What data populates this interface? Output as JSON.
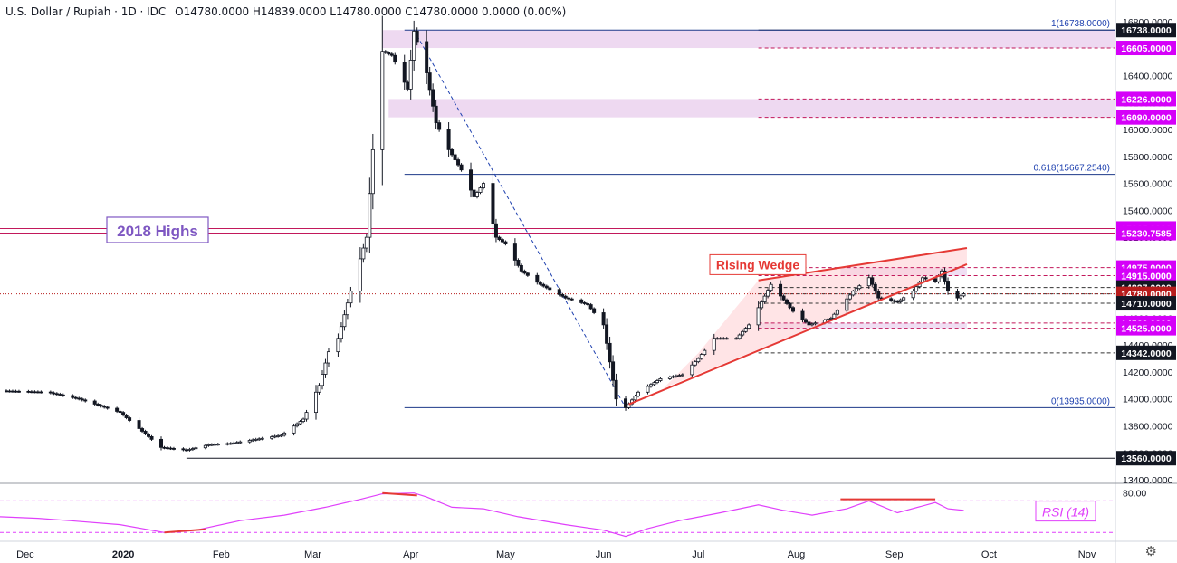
{
  "header": {
    "symbol": "U.S. Dollar / Rupiah · 1D · IDC",
    "ohlc": "O14780.0000 H14839.0000 L14780.0000 C14780.0000 0.0000 (0.00%)"
  },
  "chart_data": [
    {
      "type": "candlestick",
      "title": "U.S. Dollar / Rupiah · 1D · IDC",
      "y_range": [
        13380,
        16800
      ],
      "x_range": [
        "2019-11-23",
        "2020-11-10"
      ],
      "price_axis_ticks": [
        13400,
        13600,
        13800,
        14000,
        14200,
        14400,
        14600,
        14800,
        15000,
        15200,
        15400,
        15600,
        15800,
        16000,
        16200,
        16400,
        16600,
        16800
      ],
      "price_tick_labels": [
        "13400.0000",
        "13600.0000",
        "13800.0000",
        "14000.0000",
        "14200.0000",
        "14400.0000",
        "14600.0000",
        "14800.0000",
        "15000.0000",
        "15200.0000",
        "15400.0000",
        "15600.0000",
        "15800.0000",
        "16000.0000",
        "16200.0000",
        "16400.0000",
        "16600.0000",
        "16800.0000"
      ],
      "time_axis_labels": [
        {
          "date": "2019-12-01",
          "label": "Dec"
        },
        {
          "date": "2020-01-01",
          "label": "2020"
        },
        {
          "date": "2020-02-01",
          "label": "Feb"
        },
        {
          "date": "2020-03-01",
          "label": "Mar"
        },
        {
          "date": "2020-04-01",
          "label": "Apr"
        },
        {
          "date": "2020-05-01",
          "label": "May"
        },
        {
          "date": "2020-06-01",
          "label": "Jun"
        },
        {
          "date": "2020-07-01",
          "label": "Jul"
        },
        {
          "date": "2020-08-01",
          "label": "Aug"
        },
        {
          "date": "2020-09-01",
          "label": "Sep"
        },
        {
          "date": "2020-10-01",
          "label": "Oct"
        },
        {
          "date": "2020-11-01",
          "label": "Nov"
        }
      ],
      "close_path": [
        [
          "2019-11-23",
          14060
        ],
        [
          "2019-12-08",
          14050
        ],
        [
          "2019-12-18",
          14000
        ],
        [
          "2019-12-31",
          13900
        ],
        [
          "2020-01-08",
          13740
        ],
        [
          "2020-01-13",
          13640
        ],
        [
          "2020-01-21",
          13620
        ],
        [
          "2020-01-28",
          13660
        ],
        [
          "2020-02-04",
          13670
        ],
        [
          "2020-02-12",
          13700
        ],
        [
          "2020-02-20",
          13730
        ],
        [
          "2020-02-27",
          13850
        ],
        [
          "2020-03-03",
          14100
        ],
        [
          "2020-03-06",
          14350
        ],
        [
          "2020-03-09",
          14450
        ],
        [
          "2020-03-13",
          14800
        ],
        [
          "2020-03-18",
          15200
        ],
        [
          "2020-03-20",
          15850
        ],
        [
          "2020-03-23",
          16580
        ],
        [
          "2020-03-26",
          16550
        ],
        [
          "2020-03-31",
          16300
        ],
        [
          "2020-04-02",
          16730
        ],
        [
          "2020-04-06",
          16420
        ],
        [
          "2020-04-09",
          16050
        ],
        [
          "2020-04-13",
          15850
        ],
        [
          "2020-04-17",
          15700
        ],
        [
          "2020-04-21",
          15500
        ],
        [
          "2020-04-24",
          15600
        ],
        [
          "2020-04-28",
          15200
        ],
        [
          "2020-05-01",
          15150
        ],
        [
          "2020-05-06",
          14950
        ],
        [
          "2020-05-12",
          14850
        ],
        [
          "2020-05-20",
          14750
        ],
        [
          "2020-05-27",
          14700
        ],
        [
          "2020-06-01",
          14550
        ],
        [
          "2020-06-05",
          14000
        ],
        [
          "2020-06-08",
          13935
        ],
        [
          "2020-06-12",
          14050
        ],
        [
          "2020-06-19",
          14150
        ],
        [
          "2020-06-26",
          14180
        ],
        [
          "2020-07-01",
          14300
        ],
        [
          "2020-07-06",
          14450
        ],
        [
          "2020-07-13",
          14450
        ],
        [
          "2020-07-17",
          14550
        ],
        [
          "2020-07-21",
          14720
        ],
        [
          "2020-07-24",
          14850
        ],
        [
          "2020-07-31",
          14650
        ],
        [
          "2020-08-05",
          14550
        ],
        [
          "2020-08-12",
          14600
        ],
        [
          "2020-08-19",
          14800
        ],
        [
          "2020-08-24",
          14900
        ],
        [
          "2020-08-27",
          14750
        ],
        [
          "2020-09-02",
          14720
        ],
        [
          "2020-09-07",
          14800
        ],
        [
          "2020-09-10",
          14900
        ],
        [
          "2020-09-14",
          14870
        ],
        [
          "2020-09-16",
          14950
        ],
        [
          "2020-09-18",
          14800
        ],
        [
          "2020-09-21",
          14750
        ],
        [
          "2020-09-23",
          14780
        ]
      ],
      "horizontal_levels": [
        {
          "price": 16738,
          "label": "16738.0000",
          "color": "#131722"
        },
        {
          "price": 16605,
          "label": "16605.0000",
          "color": "#7b00d4"
        },
        {
          "price": 16226,
          "label": "16226.0000",
          "color": "#7b00d4"
        },
        {
          "price": 16090,
          "label": "16090.0000",
          "color": "#7b00d4"
        },
        {
          "price": 15265,
          "label": "15265.0000",
          "color": "#7b00d4"
        },
        {
          "price": 15230.7585,
          "label": "15230.7585",
          "color": "#7b00d4"
        },
        {
          "price": 14975,
          "label": "14975.0000",
          "color": "#7b00d4"
        },
        {
          "price": 14915,
          "label": "14915.0000",
          "color": "#7b00d4"
        },
        {
          "price": 14827,
          "label": "14827.0000",
          "color": "#131722"
        },
        {
          "price": 14780,
          "label": "14780.0000",
          "color": "#b71c1c"
        },
        {
          "price": 14710,
          "label": "14710.0000",
          "color": "#131722"
        },
        {
          "price": 14563,
          "label": "14563.0000",
          "color": "#7b00d4"
        },
        {
          "price": 14525,
          "label": "14525.0000",
          "color": "#7b00d4"
        },
        {
          "price": 14342,
          "label": "14342.0000",
          "color": "#131722"
        },
        {
          "price": 13560,
          "label": "13560.0000",
          "color": "#131722"
        }
      ],
      "fibonacci": [
        {
          "price": 16738,
          "label": "1(16738.0000)"
        },
        {
          "price": 15667.254,
          "label": "0.618(15667.2540)"
        },
        {
          "price": 13935,
          "label": "0(13935.0000)"
        }
      ],
      "annotations": [
        {
          "text": "2018 Highs",
          "color": "#7e57c2"
        },
        {
          "text": "Rising Wedge",
          "color": "#e53935"
        }
      ],
      "rising_wedge": {
        "upper": [
          [
            "2020-07-20",
            14880
          ],
          [
            "2020-09-24",
            15120
          ]
        ],
        "lower": [
          [
            "2020-06-09",
            13960
          ],
          [
            "2020-09-24",
            15000
          ]
        ]
      }
    },
    {
      "type": "line",
      "title": "RSI (14)",
      "y_range": [
        20,
        90
      ],
      "tick": {
        "value": 80,
        "label": "80.00"
      },
      "bands": [
        70,
        30
      ],
      "values": [
        [
          "2019-11-23",
          50
        ],
        [
          "2019-12-05",
          48
        ],
        [
          "2019-12-15",
          45
        ],
        [
          "2019-12-31",
          40
        ],
        [
          "2020-01-14",
          30
        ],
        [
          "2020-01-24",
          33
        ],
        [
          "2020-02-07",
          45
        ],
        [
          "2020-02-21",
          52
        ],
        [
          "2020-03-05",
          62
        ],
        [
          "2020-03-16",
          72
        ],
        [
          "2020-03-23",
          79
        ],
        [
          "2020-04-02",
          80
        ],
        [
          "2020-04-06",
          75
        ],
        [
          "2020-04-14",
          62
        ],
        [
          "2020-04-24",
          60
        ],
        [
          "2020-05-05",
          50
        ],
        [
          "2020-05-20",
          40
        ],
        [
          "2020-06-01",
          33
        ],
        [
          "2020-06-08",
          25
        ],
        [
          "2020-06-15",
          35
        ],
        [
          "2020-06-25",
          45
        ],
        [
          "2020-07-08",
          55
        ],
        [
          "2020-07-20",
          65
        ],
        [
          "2020-07-28",
          58
        ],
        [
          "2020-08-06",
          52
        ],
        [
          "2020-08-17",
          60
        ],
        [
          "2020-08-24",
          70
        ],
        [
          "2020-09-02",
          55
        ],
        [
          "2020-09-14",
          68
        ],
        [
          "2020-09-18",
          60
        ],
        [
          "2020-09-23",
          58
        ]
      ]
    }
  ]
}
